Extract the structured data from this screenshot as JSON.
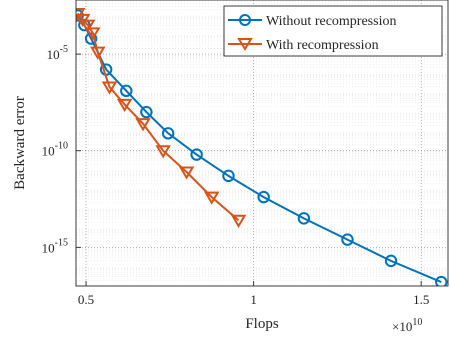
{
  "chart_data": {
    "type": "line",
    "xlabel": "Flops",
    "ylabel": "Backward error",
    "x_multiplier_label": "×10",
    "x_multiplier_exp": "10",
    "xlim": [
      0.47,
      1.58
    ],
    "ylim_exponent": [
      -17,
      -2.2
    ],
    "yscale": "log",
    "grid": true,
    "legend_position": "top-right",
    "xticks": [
      {
        "value": 0.5,
        "label": "0.5"
      },
      {
        "value": 1.0,
        "label": "1"
      },
      {
        "value": 1.5,
        "label": "1.5"
      }
    ],
    "yticks": [
      {
        "exponent": -5,
        "base": "10",
        "exp": "-5"
      },
      {
        "exponent": -10,
        "base": "10",
        "exp": "-10"
      },
      {
        "exponent": -15,
        "base": "10",
        "exp": "-15"
      }
    ],
    "series": [
      {
        "name": "Without recompression",
        "color": "#0072BD",
        "marker": "circle",
        "x": [
          0.475,
          0.495,
          0.515,
          0.56,
          0.62,
          0.68,
          0.745,
          0.83,
          0.925,
          1.03,
          1.15,
          1.28,
          1.41,
          1.56
        ],
        "y_exponent": [
          -3.0,
          -3.5,
          -4.2,
          -5.8,
          -6.9,
          -8.0,
          -9.1,
          -10.2,
          -11.3,
          -12.4,
          -13.5,
          -14.6,
          -15.7,
          -16.8
        ]
      },
      {
        "name": "With recompression",
        "color": "#D95319",
        "marker": "triangle-down",
        "x": [
          0.475,
          0.49,
          0.505,
          0.52,
          0.535,
          0.57,
          0.615,
          0.67,
          0.73,
          0.8,
          0.875,
          0.955
        ],
        "y_exponent": [
          -2.9,
          -3.2,
          -3.5,
          -3.9,
          -4.9,
          -6.7,
          -7.6,
          -8.6,
          -10.0,
          -11.1,
          -12.4,
          -13.6
        ]
      }
    ]
  }
}
